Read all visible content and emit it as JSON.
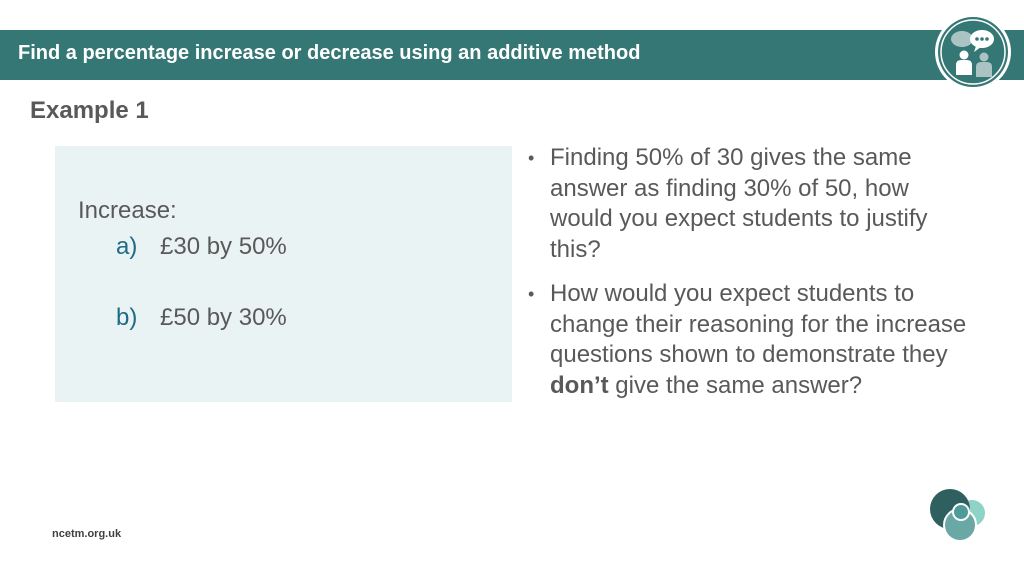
{
  "header": {
    "title": "Find a percentage increase or decrease using an additive method",
    "logo_icon": "discussion-people-icon",
    "bar_color": "#357775"
  },
  "example": {
    "heading": "Example 1"
  },
  "question_box": {
    "label": "Increase:",
    "items": [
      {
        "letter": "a)",
        "text": "£30 by 50%"
      },
      {
        "letter": "b)",
        "text": "£50 by 30%"
      }
    ],
    "background": "#eaf3f3",
    "letter_color": "#1f6a86"
  },
  "bullets": [
    {
      "text": "Finding 50% of 30 gives the same answer as finding 30% of 50, how would you expect students to justify this?"
    },
    {
      "text_before": "How would you expect students to change their reasoning for the increase questions shown to demonstrate they ",
      "text_bold": "don’t",
      "text_after": " give the same answer?"
    }
  ],
  "bullet_glyph": "•",
  "footer": {
    "url": "ncetm.org.uk",
    "logo_icon": "ncetm-circles-logo"
  }
}
